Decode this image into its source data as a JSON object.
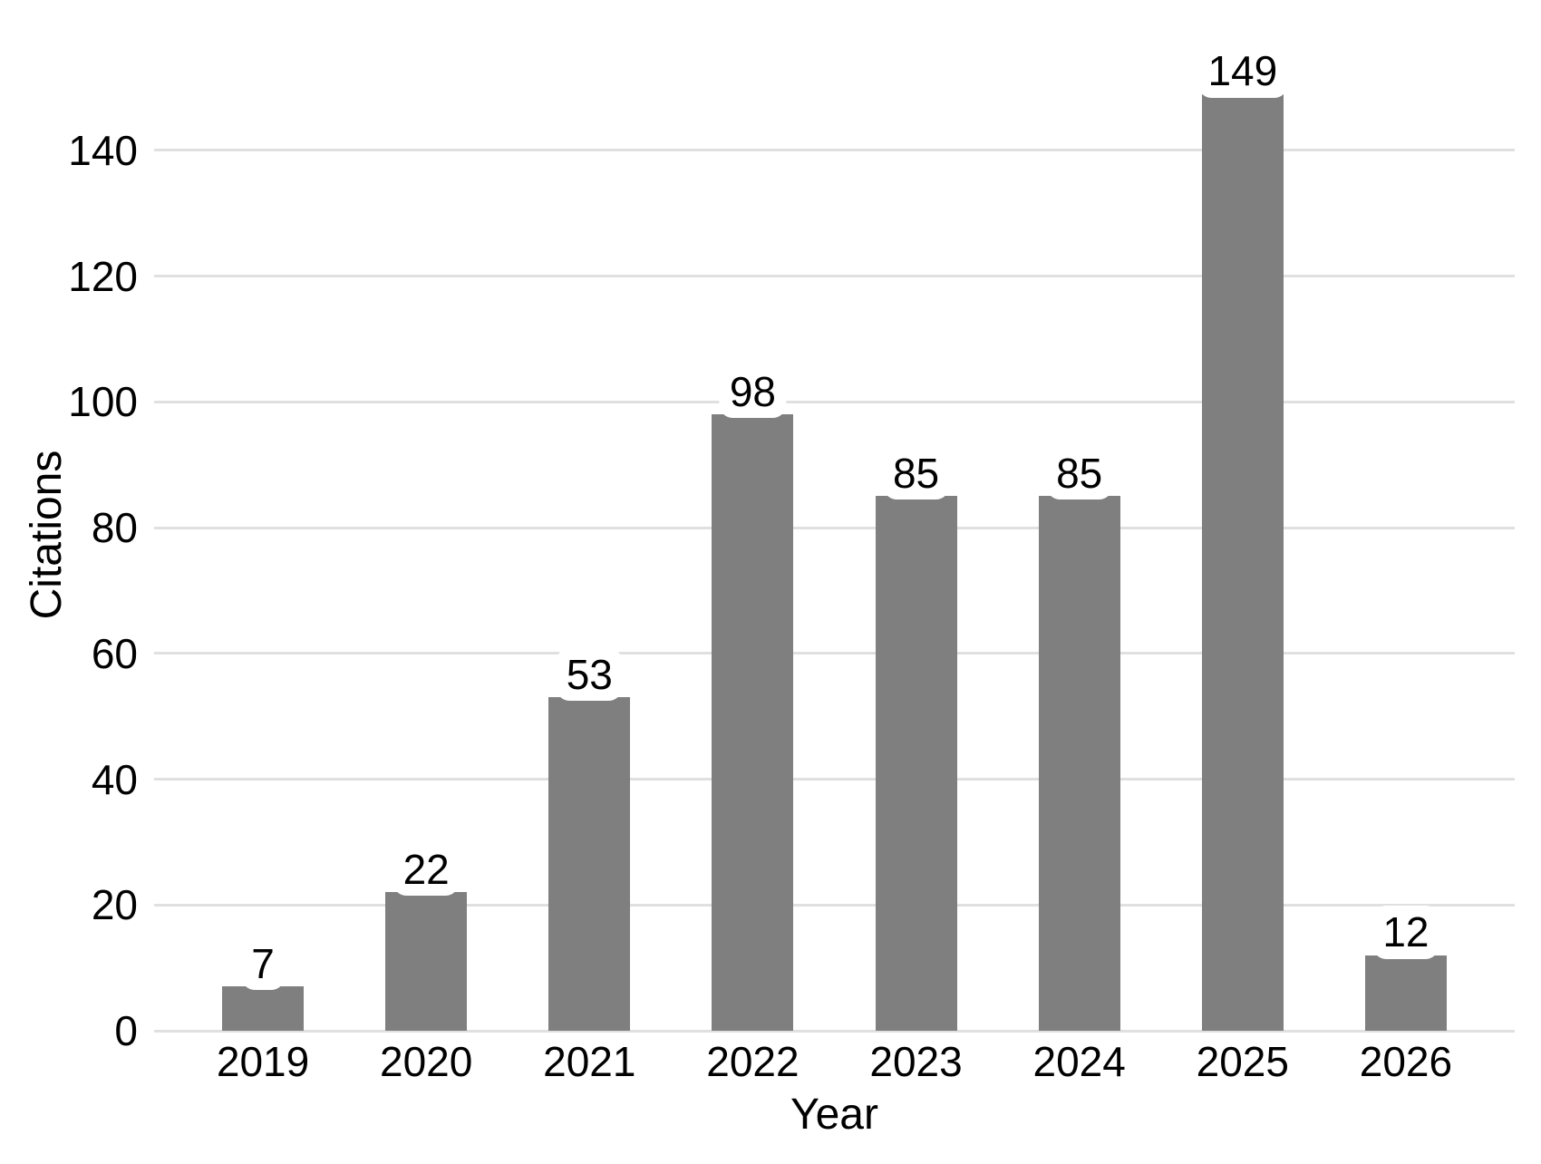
{
  "chart_data": {
    "type": "bar",
    "title": "",
    "xlabel": "Year",
    "ylabel": "Citations",
    "categories": [
      "2019",
      "2020",
      "2021",
      "2022",
      "2023",
      "2024",
      "2025",
      "2026"
    ],
    "values": [
      7,
      22,
      53,
      98,
      85,
      85,
      149,
      12
    ],
    "bar_value_labels": [
      "7",
      "22",
      "53",
      "98",
      "85",
      "85",
      "149",
      "12"
    ],
    "yticks": [
      0,
      20,
      40,
      60,
      80,
      100,
      120,
      140
    ],
    "ylim": [
      0,
      156
    ],
    "grid": "horizontal",
    "legend": "none",
    "colors": {
      "bar": "#7f7f7f",
      "gridline": "#e0e0e0",
      "text": "#000000",
      "background": "#ffffff"
    }
  }
}
